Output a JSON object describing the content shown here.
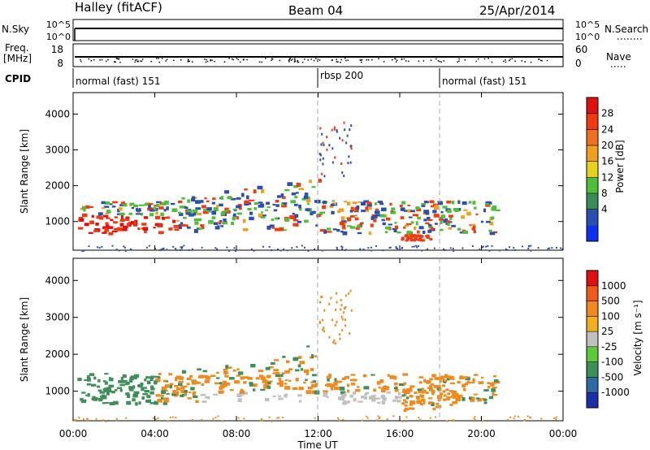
{
  "header": {
    "station": "Halley (fitACF)",
    "beam": "Beam 04",
    "date": "25/Apr/2014"
  },
  "side_labels": {
    "nsky": "N.Sky",
    "freq_top": "Freq.",
    "freq_unit": "[MHz]",
    "cpid": "CPID",
    "nsearch": "N.Search",
    "nave": "Nave"
  },
  "summary_panels": {
    "noise_ticks": [
      "10^5",
      "10^0"
    ],
    "freq_ticks": [
      "18",
      "8"
    ],
    "nave_ticks": [
      "60",
      "0"
    ]
  },
  "cpid_segments": [
    {
      "label": "normal (fast) 151",
      "start_hour": 0,
      "end_hour": 12
    },
    {
      "label": "rbsp 200",
      "start_hour": 12,
      "end_hour": 18
    },
    {
      "label": "normal (fast) 151",
      "start_hour": 18,
      "end_hour": 24
    }
  ],
  "chart_data": [
    {
      "type": "heatmap",
      "name": "power",
      "ylabel": "Slant Range [km]",
      "ylim": [
        200,
        4600
      ],
      "yticks": [
        "4000",
        "3000",
        "2000",
        "1000"
      ],
      "colorbar_label": "Power [dB]",
      "colorbar_ticks": [
        "28",
        "24",
        "20",
        "16",
        "12",
        "8",
        "4"
      ],
      "colorbar_colors": [
        "#1030f0",
        "#2a4fb0",
        "#3b8a5a",
        "#4fbf3a",
        "#e8d020",
        "#f0a020",
        "#f07020",
        "#f03a10",
        "#e01010"
      ],
      "colors": {
        "low": "#2a4fb0",
        "mid": "#4fbf3a",
        "high": "#f03a10",
        "peak": "#e01010"
      }
    },
    {
      "type": "heatmap",
      "name": "velocity",
      "ylabel": "Slant Range [km]",
      "ylim": [
        200,
        4600
      ],
      "yticks": [
        "4000",
        "3000",
        "2000",
        "1000"
      ],
      "colorbar_label": "Velocity [m s⁻¹]",
      "colorbar_ticks": [
        "1000",
        "500",
        "100",
        "25",
        "-25",
        "-100",
        "-500",
        "-1000"
      ],
      "colorbar_colors": [
        "#1c2fa8",
        "#2f6aa8",
        "#3f8f5a",
        "#5cc83a",
        "#c0c0c0",
        "#f0b020",
        "#f08a20",
        "#f05a18",
        "#e01010"
      ],
      "colors": {
        "away": "#3f8f5a",
        "slow": "#c0c0c0",
        "toward": "#f08a20"
      }
    }
  ],
  "x_axis": {
    "label": "Time UT",
    "ticks": [
      "00:00",
      "04:00",
      "08:00",
      "12:00",
      "16:00",
      "20:00",
      "00:00"
    ],
    "xlim_hours": [
      0,
      24
    ]
  }
}
